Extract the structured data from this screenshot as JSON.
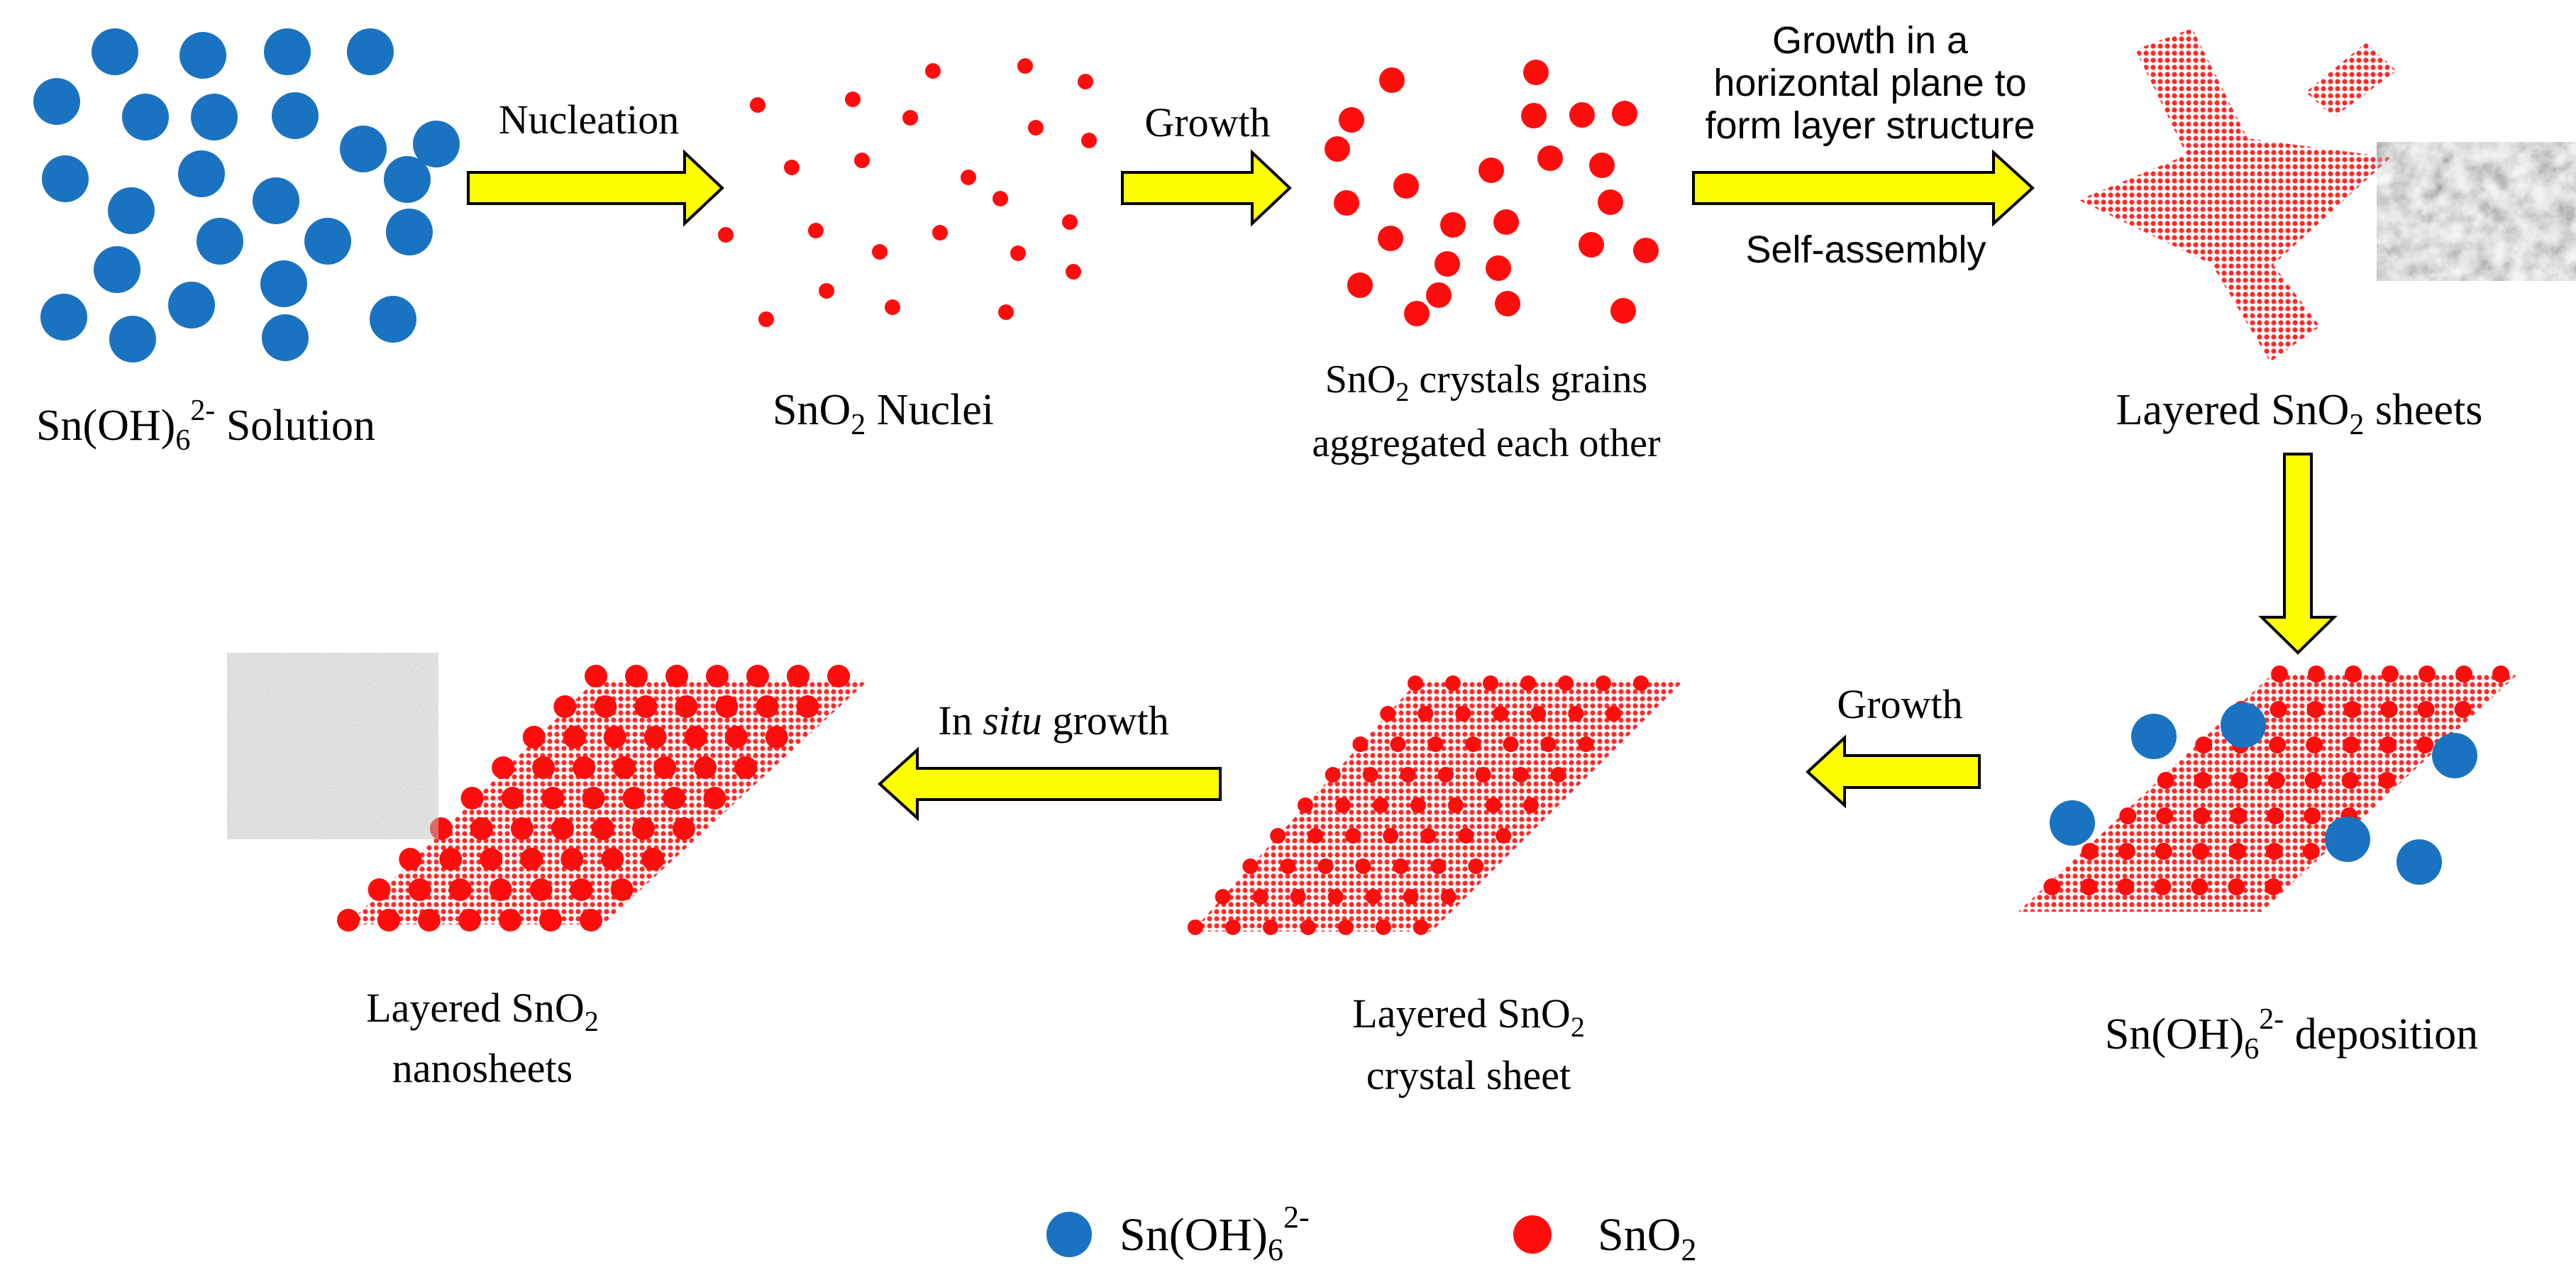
{
  "colors": {
    "sn_oh6": "#1a73c1",
    "sno2": "#ff0d0d",
    "sheet": "#ff3b3b",
    "arrow_fill": "#ffff00",
    "arrow_stroke": "#000000",
    "sem_gray": "#8a8a8a"
  },
  "stages": {
    "solution": {
      "label_main": "Sn(OH)",
      "label_sub": "6",
      "label_sup": "2-",
      "label_tail": " Solution"
    },
    "nuclei": {
      "label_main": "SnO",
      "label_sub": "2",
      "label_tail": " Nuclei"
    },
    "grains": {
      "line1_main": "SnO",
      "line1_sub": "2",
      "line1_tail": " crystals grains",
      "line2": "aggregated each other"
    },
    "layered_sheets": {
      "label_main": "Layered SnO",
      "label_sub": "2",
      "label_tail": " sheets"
    },
    "deposition": {
      "label_main": "Sn(OH)",
      "label_sub": "6",
      "label_sup": "2-",
      "label_tail": " deposition"
    },
    "crystal_sheet": {
      "line1_main": "Layered SnO",
      "line1_sub": "2",
      "line2_main": "crystal sheet"
    },
    "nanosheets": {
      "line1_main": "Layered SnO",
      "line1_sub": "2",
      "line2": "nanosheets"
    }
  },
  "arrows": {
    "nucleation": "Nucleation",
    "growth1": "Growth",
    "growth_plane_line1": "Growth in a",
    "growth_plane_line2": "horizontal plane to",
    "growth_plane_line3": "form layer structure",
    "self_assembly": "Self-assembly",
    "growth2": "Growth",
    "in_situ_pre": "In ",
    "in_situ_italic": "situ",
    "in_situ_post": " growth"
  },
  "legend": {
    "item1_main": "Sn(OH)",
    "item1_sub": "6",
    "item1_sup": "2-",
    "item2_main": "SnO",
    "item2_sub": "2"
  }
}
